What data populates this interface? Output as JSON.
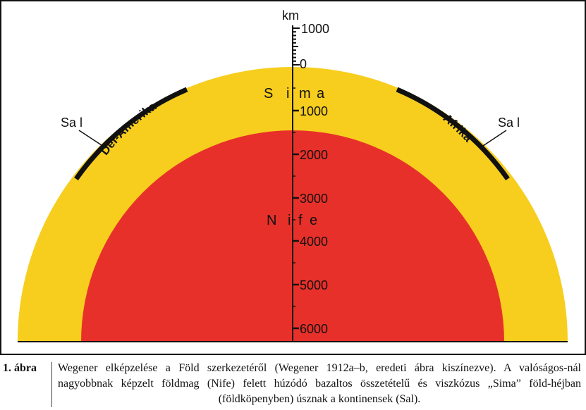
{
  "diagram": {
    "unit_label": "km",
    "scale_labels": [
      "1000",
      "0",
      "1000",
      "2000",
      "3000",
      "4000",
      "5000",
      "6000"
    ],
    "layers": {
      "sima": {
        "label": [
          "S",
          "i",
          "m",
          "a"
        ],
        "color": "#f7ce1e"
      },
      "nife": {
        "label": [
          "N",
          "i",
          "f",
          "e"
        ],
        "color": "#e8302a"
      }
    },
    "continents": {
      "left_name": "Dél-Amerika",
      "right_name": "Afrika",
      "left_sal": "Sa l",
      "right_sal": "Sa l",
      "color": "#111111"
    }
  },
  "caption": {
    "label": "1. ábra",
    "text": "Wegener elképzelése a Föld szerkezetéről (Wegener 1912a–b, eredeti ábra kiszínezve). A valóságos-nál nagyobbnak képzelt földmag (Nife) felett húzódó bazaltos összetételű és viszkózus „Sima” föld-héjban (földköpenyben) úsznak a kontinensek (Sal)."
  }
}
